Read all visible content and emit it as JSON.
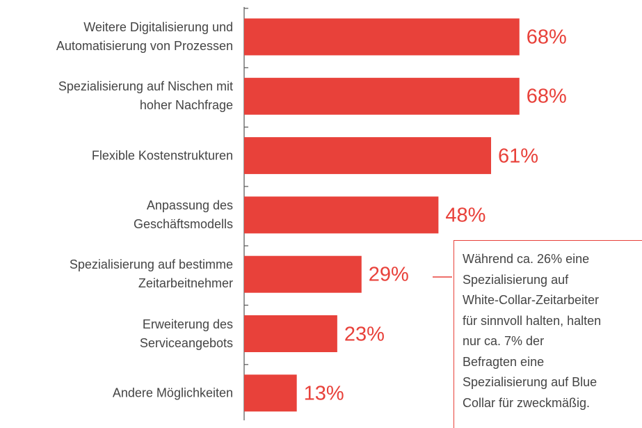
{
  "chart_data": {
    "type": "bar",
    "orientation": "horizontal",
    "categories": [
      "Weitere Digitalisierung und\nAutomatisierung von Prozessen",
      "Spezialisierung auf Nischen mit\nhoher Nachfrage",
      "Flexible Kostenstrukturen",
      "Anpassung des\nGeschäftsmodells",
      "Spezialisierung auf bestimme\nZeitarbeitnehmer",
      "Erweiterung des\nServiceangebots",
      "Andere Möglichkeiten"
    ],
    "values": [
      68,
      68,
      61,
      48,
      29,
      23,
      13
    ],
    "value_labels": [
      "68%",
      "68%",
      "61%",
      "48%",
      "29%",
      "23%",
      "13%"
    ],
    "color": "#e8413a",
    "annotation": "Während ca. 26% eine\nSpezialisierung auf\nWhite-Collar-Zeitarbeiter\nfür sinnvoll halten, halten\nnur ca. 7% der\nBefragten eine\nSpezialisierung auf Blue\nCollar für zweckmäßig."
  }
}
